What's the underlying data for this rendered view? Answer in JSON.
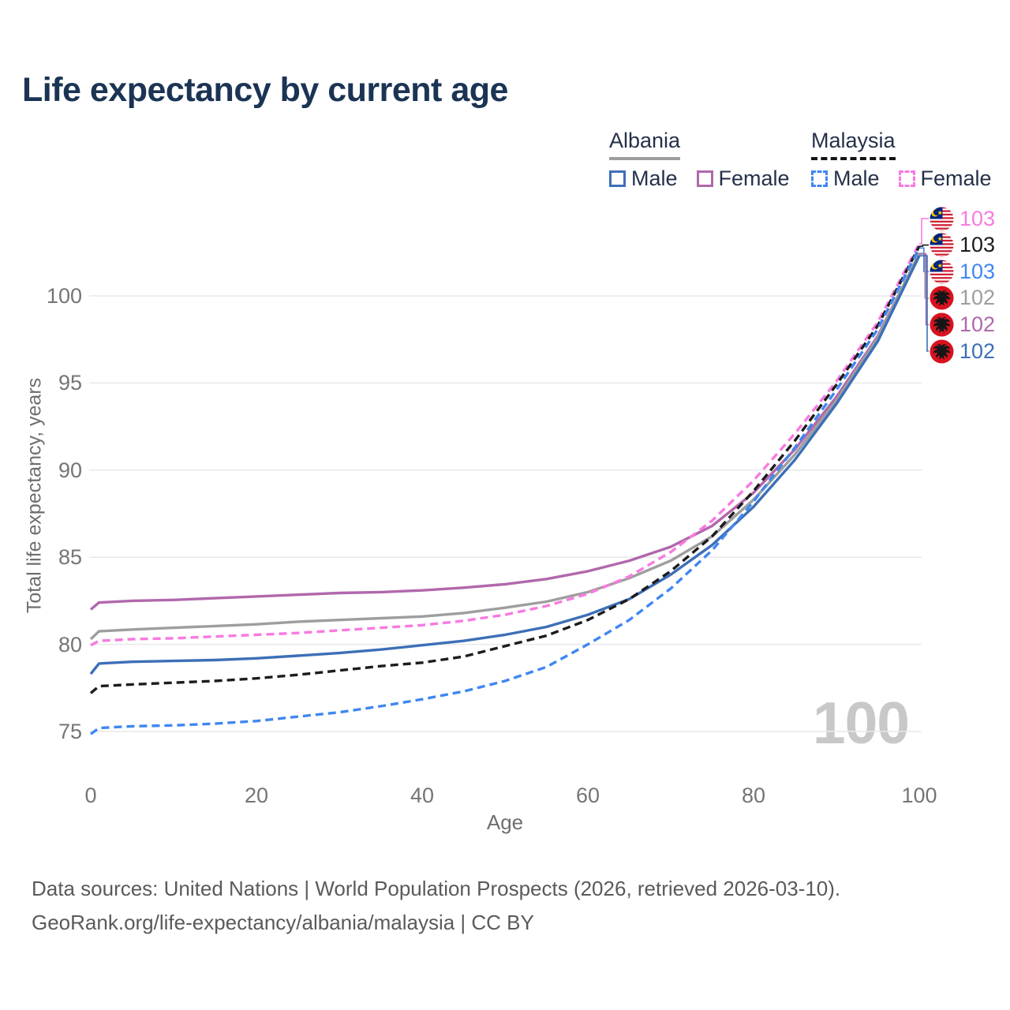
{
  "title": "Life expectancy by current age",
  "legend": {
    "groups": [
      {
        "name": "Albania",
        "line_style": "solid",
        "underline_color": "#9e9e9e",
        "items": [
          {
            "label": "Male",
            "color": "#3d6fb8",
            "dash": false
          },
          {
            "label": "Female",
            "color": "#b168ac",
            "dash": false
          }
        ]
      },
      {
        "name": "Malaysia",
        "line_style": "dashed",
        "underline_color": "#141414",
        "items": [
          {
            "label": "Male",
            "color": "#3f87f0",
            "dash": true
          },
          {
            "label": "Female",
            "color": "#f87ae0",
            "dash": true
          }
        ]
      }
    ]
  },
  "chart_data": {
    "type": "line",
    "title": "Life expectancy by current age",
    "xlabel": "Age",
    "ylabel": "Total life expectancy, years",
    "xlim": [
      0,
      100
    ],
    "ylim": [
      73.5,
      104
    ],
    "xticks": [
      0,
      20,
      40,
      60,
      80,
      100
    ],
    "yticks": [
      75,
      80,
      85,
      90,
      95,
      100
    ],
    "grid": "horizontal",
    "grid_color": "#e8e8e8",
    "x": [
      0,
      1,
      5,
      10,
      15,
      20,
      25,
      30,
      35,
      40,
      45,
      50,
      55,
      60,
      65,
      70,
      75,
      80,
      85,
      90,
      95,
      100
    ],
    "series": [
      {
        "name": "Albania Female",
        "country": "Albania",
        "sex": "female",
        "color": "#b168ac",
        "dash": false,
        "values": [
          82.0,
          82.4,
          82.5,
          82.55,
          82.65,
          82.75,
          82.85,
          82.95,
          83.0,
          83.1,
          83.25,
          83.45,
          83.75,
          84.2,
          84.8,
          85.6,
          86.8,
          88.7,
          91.2,
          94.2,
          97.7,
          102.4
        ],
        "end_label": "102"
      },
      {
        "name": "Albania Total",
        "country": "Albania",
        "sex": "both",
        "color": "#9e9e9e",
        "dash": false,
        "values": [
          80.3,
          80.75,
          80.85,
          80.95,
          81.05,
          81.15,
          81.3,
          81.4,
          81.5,
          81.6,
          81.8,
          82.1,
          82.45,
          83.0,
          83.8,
          84.8,
          86.2,
          88.3,
          90.9,
          94.0,
          97.6,
          102.45
        ],
        "end_label": "102"
      },
      {
        "name": "Albania Male",
        "country": "Albania",
        "sex": "male",
        "color": "#3d6fb8",
        "dash": false,
        "values": [
          78.3,
          78.9,
          79.0,
          79.05,
          79.1,
          79.2,
          79.35,
          79.5,
          79.7,
          79.95,
          80.2,
          80.55,
          81.0,
          81.7,
          82.6,
          84.0,
          85.7,
          87.9,
          90.6,
          93.8,
          97.4,
          102.3
        ],
        "end_label": "102"
      },
      {
        "name": "Malaysia Female",
        "country": "Malaysia",
        "sex": "female",
        "color": "#f87ae0",
        "dash": true,
        "values": [
          79.95,
          80.2,
          80.3,
          80.35,
          80.45,
          80.55,
          80.65,
          80.8,
          80.95,
          81.1,
          81.35,
          81.7,
          82.2,
          82.9,
          83.9,
          85.3,
          87.1,
          89.4,
          92.1,
          95.1,
          98.5,
          103.0
        ],
        "end_label": "103"
      },
      {
        "name": "Malaysia Total",
        "country": "Malaysia",
        "sex": "both",
        "color": "#1c1c1c",
        "dash": true,
        "values": [
          77.2,
          77.6,
          77.7,
          77.8,
          77.9,
          78.05,
          78.25,
          78.5,
          78.75,
          78.95,
          79.3,
          79.9,
          80.5,
          81.4,
          82.6,
          84.2,
          86.2,
          88.8,
          91.7,
          94.9,
          98.3,
          102.85
        ],
        "end_label": "103"
      },
      {
        "name": "Malaysia Male",
        "country": "Malaysia",
        "sex": "male",
        "color": "#3f87f0",
        "dash": true,
        "values": [
          74.85,
          75.2,
          75.3,
          75.35,
          75.45,
          75.6,
          75.85,
          76.1,
          76.45,
          76.85,
          77.3,
          77.9,
          78.7,
          80.0,
          81.4,
          83.2,
          85.4,
          88.2,
          91.3,
          94.6,
          98.1,
          102.75
        ],
        "end_label": "103"
      }
    ],
    "legend_position": "top-right"
  },
  "end_labels": [
    {
      "series": 3,
      "value": "103",
      "flag": "malaysia",
      "color": "#f87ae0"
    },
    {
      "series": 4,
      "value": "103",
      "flag": "malaysia",
      "color": "#1c1c1c"
    },
    {
      "series": 5,
      "value": "103",
      "flag": "malaysia",
      "color": "#3f87f0"
    },
    {
      "series": 1,
      "value": "102",
      "flag": "albania",
      "color": "#9e9e9e"
    },
    {
      "series": 0,
      "value": "102",
      "flag": "albania",
      "color": "#b168ac"
    },
    {
      "series": 2,
      "value": "102",
      "flag": "albania",
      "color": "#3d6fb8"
    }
  ],
  "watermark": {
    "text": "100"
  },
  "footer": {
    "line1": "Data sources: United Nations | World Population Prospects (2026, retrieved 2026-03-10).",
    "line2": "GeoRank.org/life-expectancy/albania/malaysia | CC BY"
  }
}
